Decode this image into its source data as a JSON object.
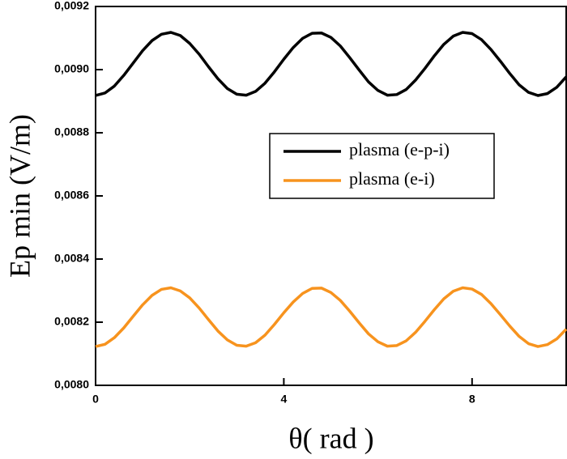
{
  "chart_data": {
    "type": "line",
    "x_label": "θ( rad )",
    "y_label": "Ep min (V/m)",
    "x": [
      0,
      0.2,
      0.4,
      0.6,
      0.8,
      1,
      1.2,
      1.4,
      1.6,
      1.8,
      2,
      2.2,
      2.4,
      2.6,
      2.8,
      3,
      3.2,
      3.4,
      3.6,
      3.8,
      4,
      4.2,
      4.4,
      4.6,
      4.8,
      5,
      5.2,
      5.4,
      5.6,
      5.8,
      6,
      6.2,
      6.4,
      6.6,
      6.8,
      7,
      7.2,
      7.4,
      7.6,
      7.8,
      8,
      8.2,
      8.4,
      8.6,
      8.8,
      9,
      9.2,
      9.4,
      9.6,
      9.8,
      10
    ],
    "series": [
      {
        "name": "plasma (e-p-i)",
        "color": "#000000",
        "values": [
          0.008918,
          0.008926,
          0.008948,
          0.008982,
          0.009021,
          0.00906,
          0.009092,
          0.009112,
          0.009118,
          0.009108,
          0.009083,
          0.009049,
          0.009009,
          0.008971,
          0.00894,
          0.008922,
          0.008919,
          0.008931,
          0.008957,
          0.008993,
          0.009033,
          0.00907,
          0.009099,
          0.009115,
          0.009116,
          0.009102,
          0.009075,
          0.009038,
          0.008999,
          0.008961,
          0.008934,
          0.008919,
          0.008921,
          0.008937,
          0.008967,
          0.009004,
          0.009044,
          0.00908,
          0.009106,
          0.009118,
          0.009114,
          0.009095,
          0.009064,
          0.009027,
          0.008988,
          0.008952,
          0.008928,
          0.008918,
          0.008924,
          0.008944,
          0.008977
        ]
      },
      {
        "name": "plasma (e-i)",
        "color": "#f7931e",
        "values": [
          0.008123,
          0.00813,
          0.008151,
          0.008182,
          0.008219,
          0.008255,
          0.008285,
          0.008304,
          0.008309,
          0.008299,
          0.008277,
          0.008245,
          0.008208,
          0.008172,
          0.008144,
          0.008127,
          0.008124,
          0.008135,
          0.008159,
          0.008193,
          0.00823,
          0.008264,
          0.008291,
          0.008307,
          0.008308,
          0.008294,
          0.008269,
          0.008235,
          0.008198,
          0.008163,
          0.008138,
          0.008124,
          0.008126,
          0.008141,
          0.008168,
          0.008203,
          0.00824,
          0.008274,
          0.008298,
          0.008309,
          0.008305,
          0.008288,
          0.008259,
          0.008224,
          0.008188,
          0.008155,
          0.008132,
          0.008123,
          0.008129,
          0.008147,
          0.008178
        ]
      }
    ],
    "xlim": [
      0,
      10
    ],
    "xticks": [
      0,
      4,
      8
    ],
    "ylim": [
      0.008,
      0.0092
    ],
    "yticks": [
      {
        "value": 0.008,
        "label": "0,0080"
      },
      {
        "value": 0.0082,
        "label": "0,0082"
      },
      {
        "value": 0.0084,
        "label": "0,0084"
      },
      {
        "value": 0.0086,
        "label": "0,0086"
      },
      {
        "value": 0.0088,
        "label": "0,0088"
      },
      {
        "value": 0.009,
        "label": "0,0090"
      },
      {
        "value": 0.0092,
        "label": "0,0092"
      }
    ],
    "grid": false,
    "legend_position": "center right"
  }
}
